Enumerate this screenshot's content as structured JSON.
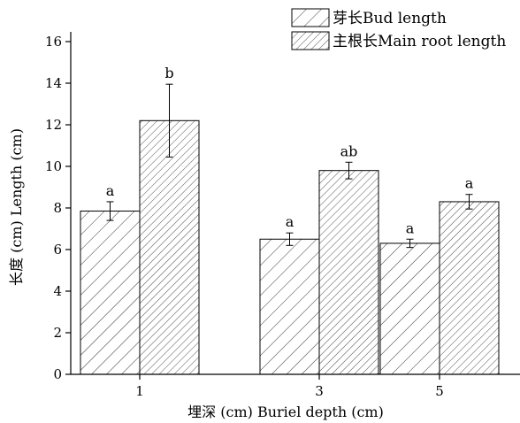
{
  "chart_data": {
    "type": "bar",
    "categories": [
      "1",
      "3",
      "5"
    ],
    "xlabel": "埋深 (cm) Buriel depth (cm)",
    "ylabel": "长度 (cm) Length (cm)",
    "ylim": [
      0,
      16
    ],
    "yticks": [
      0,
      2,
      4,
      6,
      8,
      10,
      12,
      14,
      16
    ],
    "grid": false,
    "legend_position": "top-right",
    "series": [
      {
        "name": "芽长Bud length",
        "values": [
          7.85,
          6.5,
          6.3
        ],
        "errors": [
          0.45,
          0.3,
          0.2
        ],
        "labels": [
          "a",
          "a",
          "a"
        ],
        "hatch": "sparse-diagonal"
      },
      {
        "name": "主根长Main root length",
        "values": [
          12.2,
          9.8,
          8.3
        ],
        "errors": [
          1.75,
          0.4,
          0.35
        ],
        "labels": [
          "b",
          "ab",
          "a"
        ],
        "hatch": "dense-diagonal"
      }
    ]
  }
}
